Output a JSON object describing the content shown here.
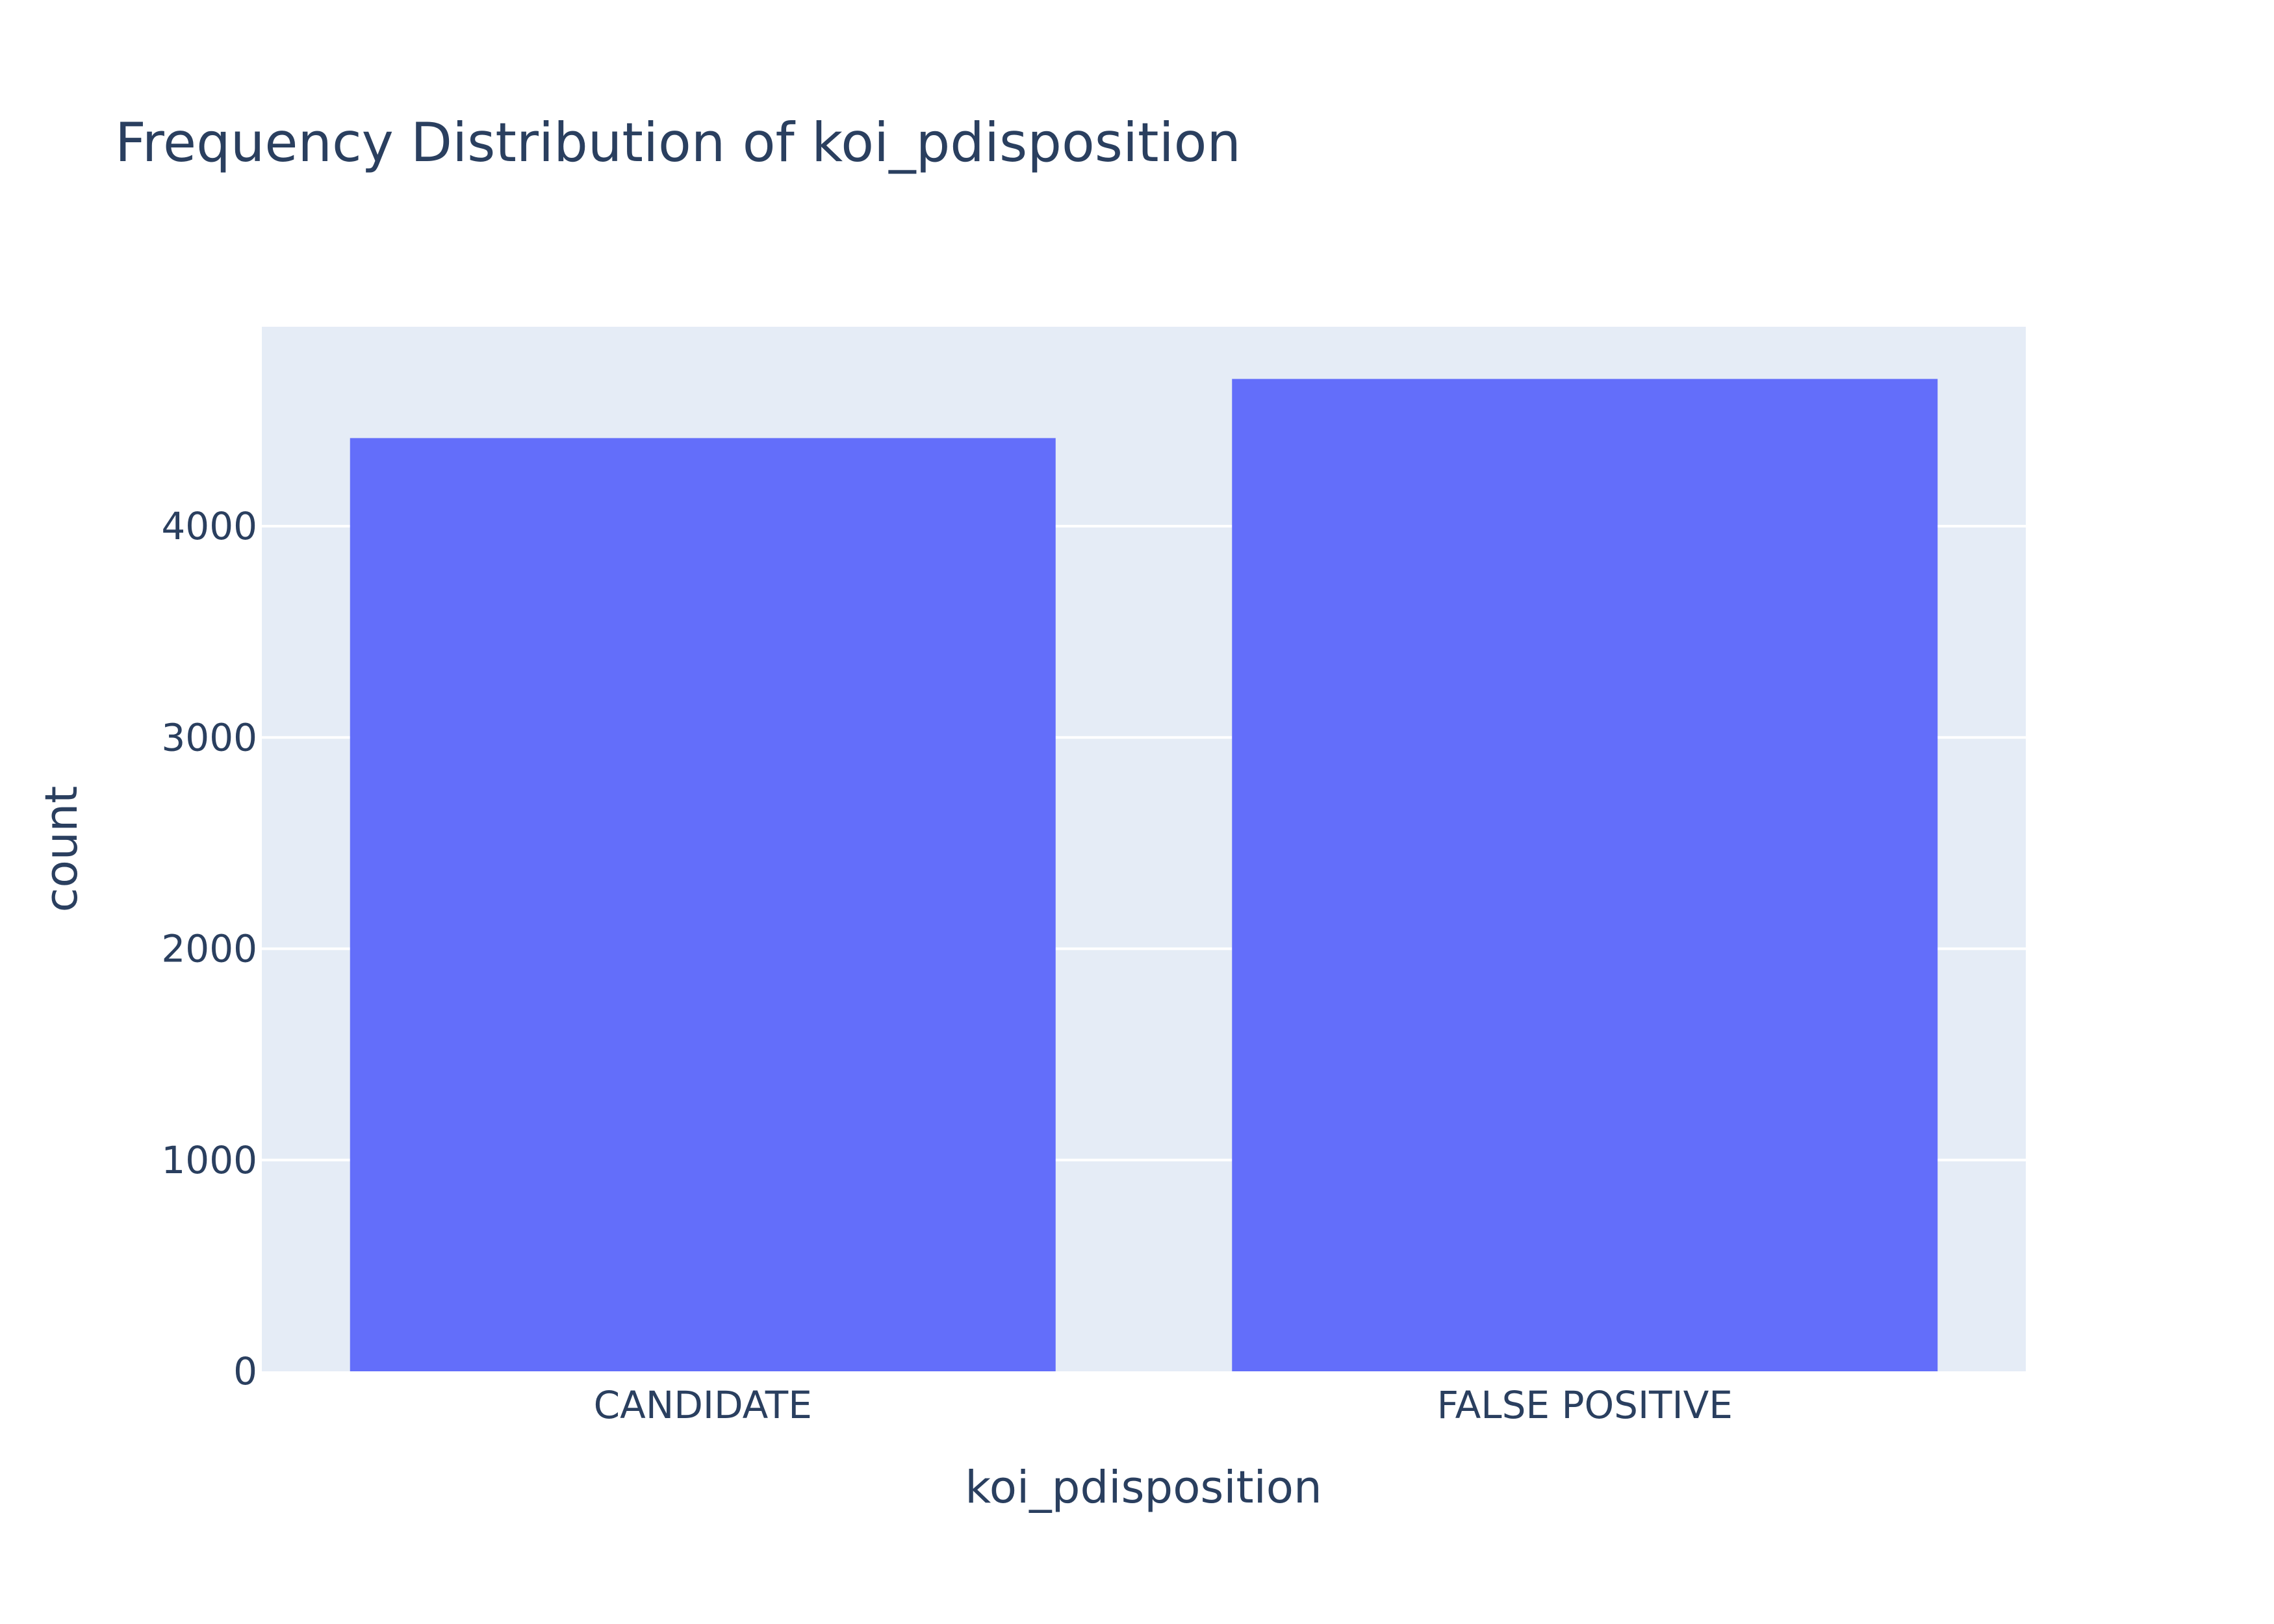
{
  "chart_data": {
    "type": "bar",
    "title": "Frequency Distribution of koi_pdisposition",
    "xlabel": "koi_pdisposition",
    "ylabel": "count",
    "categories": [
      "CANDIDATE",
      "FALSE POSITIVE"
    ],
    "values": [
      4417,
      4697
    ],
    "ylim": [
      0,
      4944
    ],
    "yticks": [
      0,
      1000,
      2000,
      3000,
      4000
    ],
    "grid": true,
    "bar_color": "#636efa",
    "plot_background": "#e5ecf6",
    "grid_color": "#ffffff",
    "text_color": "#2a3f5f"
  }
}
